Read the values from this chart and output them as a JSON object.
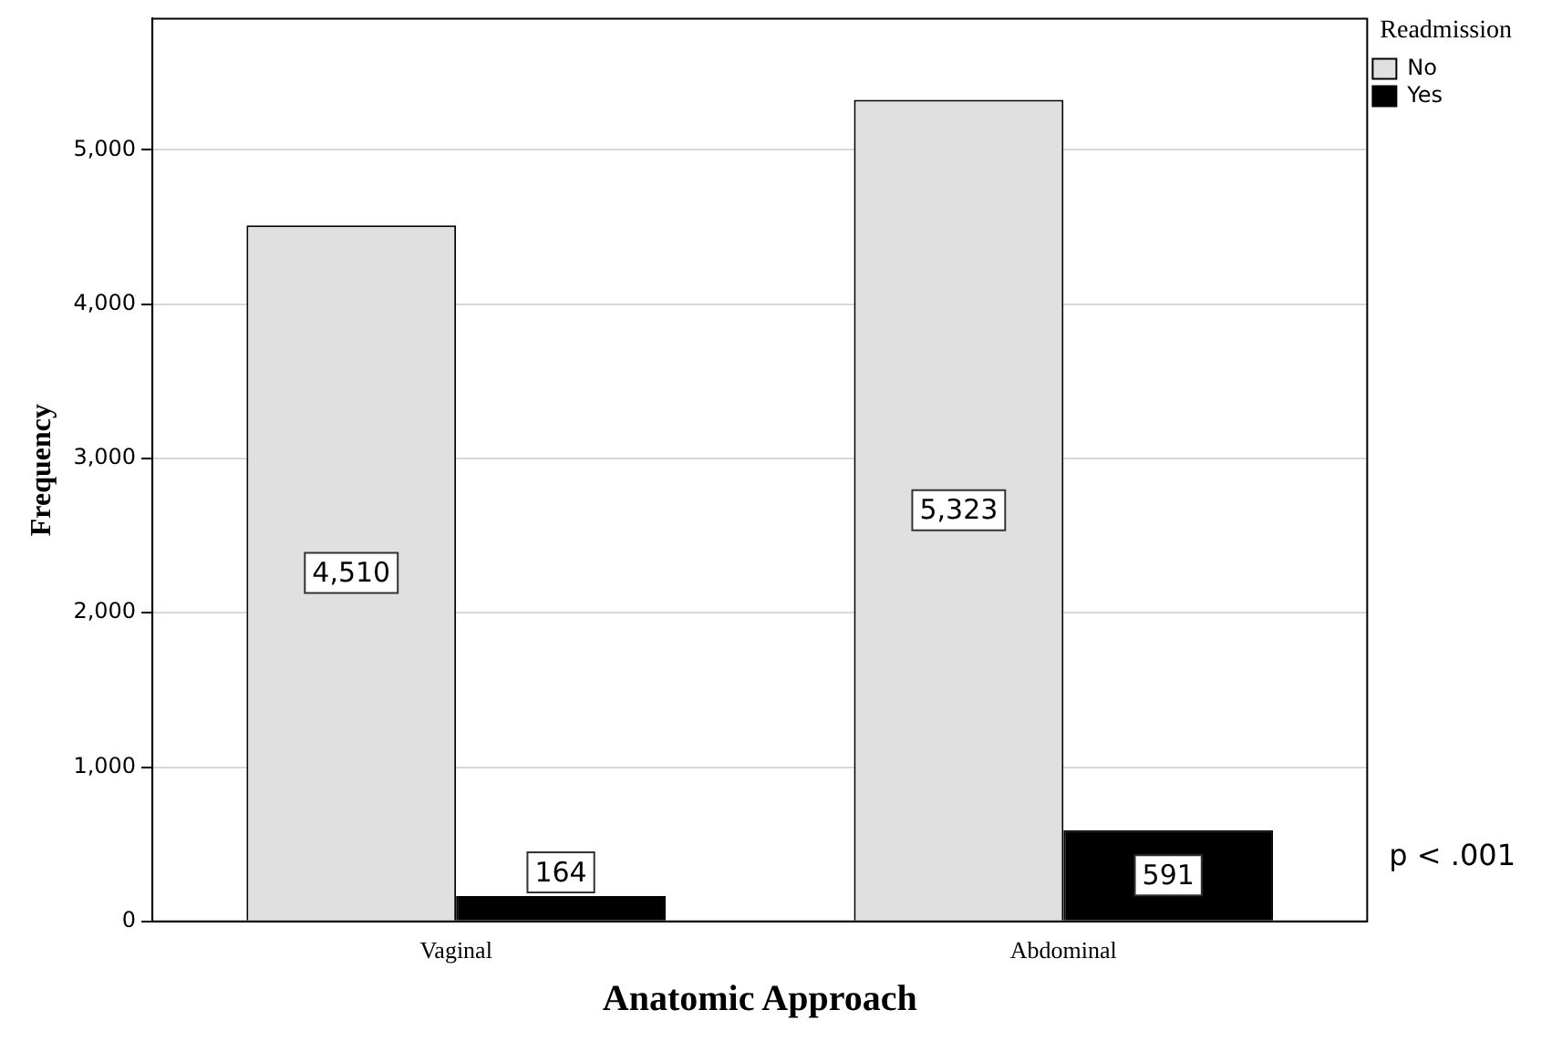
{
  "chart_data": {
    "type": "bar",
    "xlabel": "Anatomic Approach",
    "ylabel": "Frequency",
    "legend_title": "Readmission",
    "categories": [
      "Vaginal",
      "Abdominal"
    ],
    "series": [
      {
        "name": "No",
        "color": "#e0e0e0",
        "values": [
          4510,
          5323
        ],
        "value_labels": [
          "4,510",
          "5,323"
        ]
      },
      {
        "name": "Yes",
        "color": "#000000",
        "values": [
          164,
          591
        ],
        "value_labels": [
          "164",
          "591"
        ]
      }
    ],
    "ylim": [
      0,
      5850
    ],
    "yticks": [
      0,
      {
        "value": 1000,
        "label": "1,000"
      },
      {
        "value": 2000,
        "label": "2,000"
      },
      {
        "value": 3000,
        "label": "3,000"
      },
      {
        "value": 4000,
        "label": "4,000"
      },
      {
        "value": 5000,
        "label": "5,000"
      }
    ],
    "grid": "y",
    "legend": "top right",
    "annotations": [
      "p < .001"
    ]
  }
}
